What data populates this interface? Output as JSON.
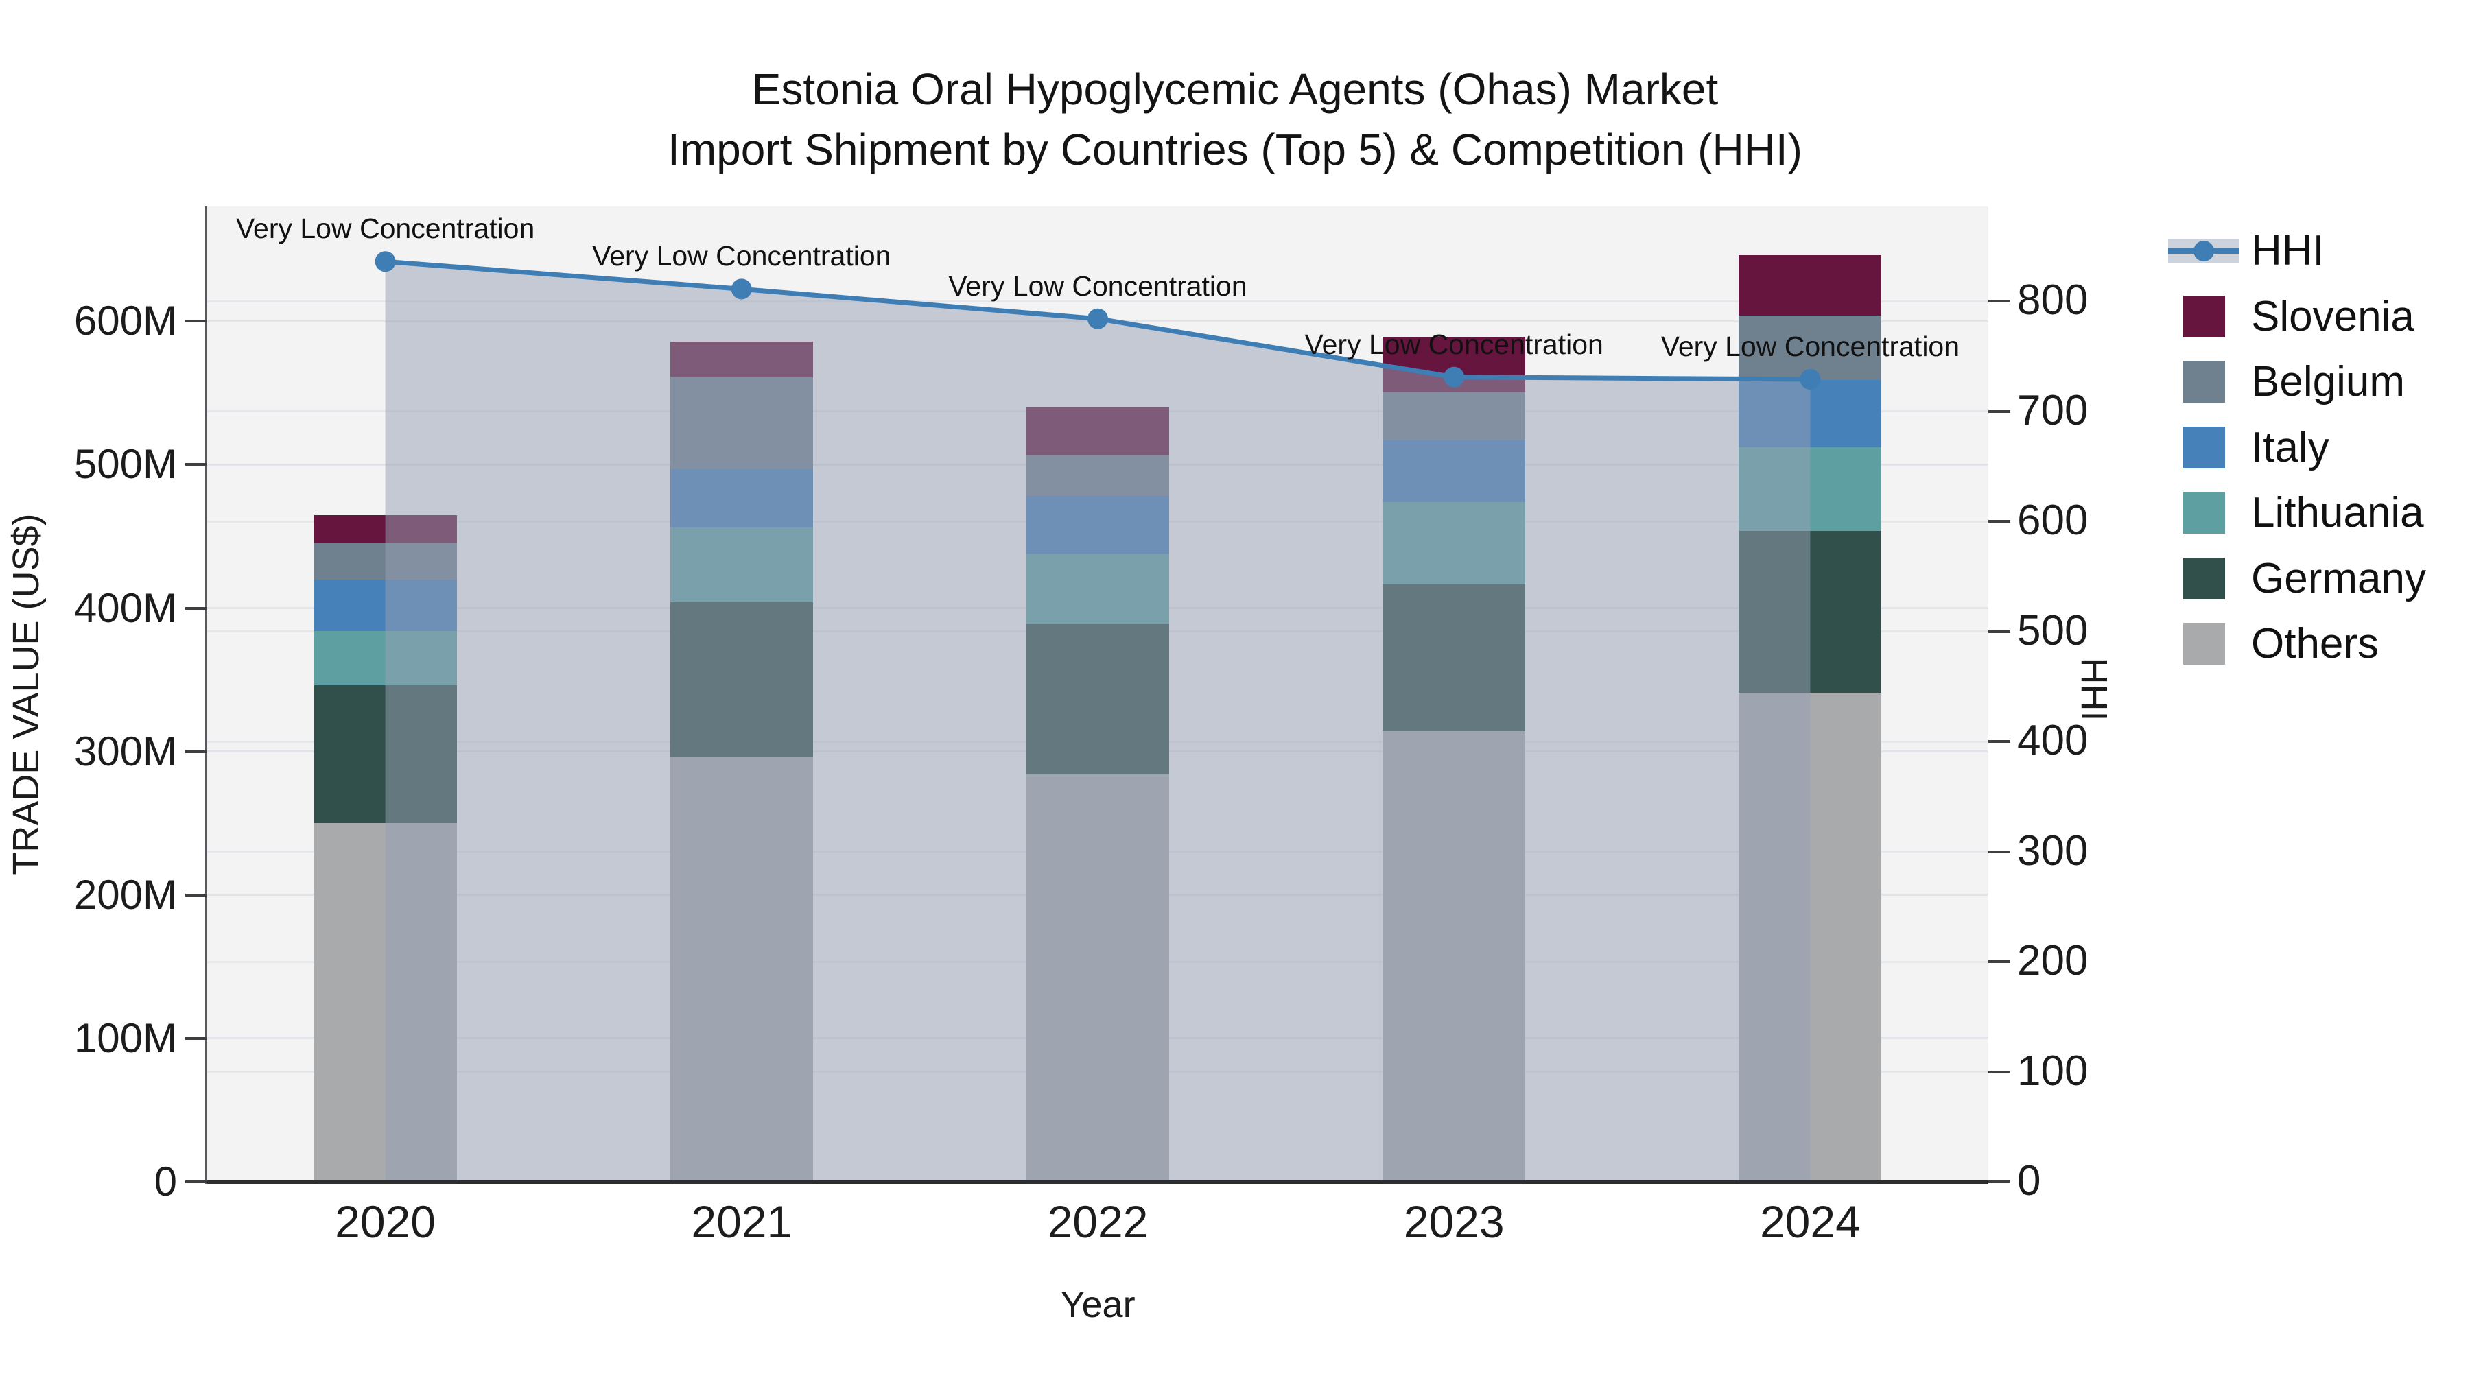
{
  "title": {
    "line1": "Estonia Oral Hypoglycemic Agents (Ohas) Market",
    "line2": "Import Shipment by Countries (Top 5) & Competition (HHI)"
  },
  "chart_data": {
    "type": "bar",
    "subtype": "stacked-bars-with-line-overlay",
    "categories": [
      "2020",
      "2021",
      "2022",
      "2023",
      "2024"
    ],
    "series": [
      {
        "name": "Others",
        "color": "#A9AAAC",
        "values": [
          250,
          296,
          284,
          314,
          341
        ]
      },
      {
        "name": "Germany",
        "color": "#31504B",
        "values": [
          96,
          108,
          105,
          103,
          113
        ]
      },
      {
        "name": "Lithuania",
        "color": "#5EA0A2",
        "values": [
          38,
          52,
          49,
          57,
          58
        ]
      },
      {
        "name": "Italy",
        "color": "#4681B9",
        "values": [
          36,
          41,
          40,
          43,
          47
        ]
      },
      {
        "name": "Belgium",
        "color": "#6F808F",
        "values": [
          25,
          64,
          29,
          34,
          45
        ]
      },
      {
        "name": "Slovenia",
        "color": "#66163E",
        "values": [
          20,
          25,
          33,
          38,
          42
        ]
      }
    ],
    "line_series": {
      "name": "HHI",
      "color": "#3E7EB5",
      "area_color": "rgba(150,160,180,0.5)",
      "values": [
        836,
        811,
        784,
        731,
        729
      ],
      "point_labels": [
        "Very Low Concentration",
        "Very Low Concentration",
        "Very Low Concentration",
        "Very Low Concentration",
        "Very Low Concentration"
      ]
    },
    "left_axis": {
      "title": "TRADE VALUE (US$)",
      "tick_values": [
        0,
        100,
        200,
        300,
        400,
        500,
        600
      ],
      "tick_labels": [
        "0",
        "100M",
        "200M",
        "300M",
        "400M",
        "500M",
        "600M"
      ],
      "max": 680,
      "unit": "M US$"
    },
    "right_axis": {
      "title": "HHI",
      "tick_values": [
        0,
        100,
        200,
        300,
        400,
        500,
        600,
        700,
        800
      ],
      "tick_labels": [
        "0",
        "100",
        "200",
        "300",
        "400",
        "500",
        "600",
        "700",
        "800"
      ],
      "max": 886
    },
    "x_axis": {
      "title": "Year"
    },
    "legend_order": [
      "HHI",
      "Slovenia",
      "Belgium",
      "Italy",
      "Lithuania",
      "Germany",
      "Others"
    ],
    "grid": true,
    "legend_position": "right"
  }
}
